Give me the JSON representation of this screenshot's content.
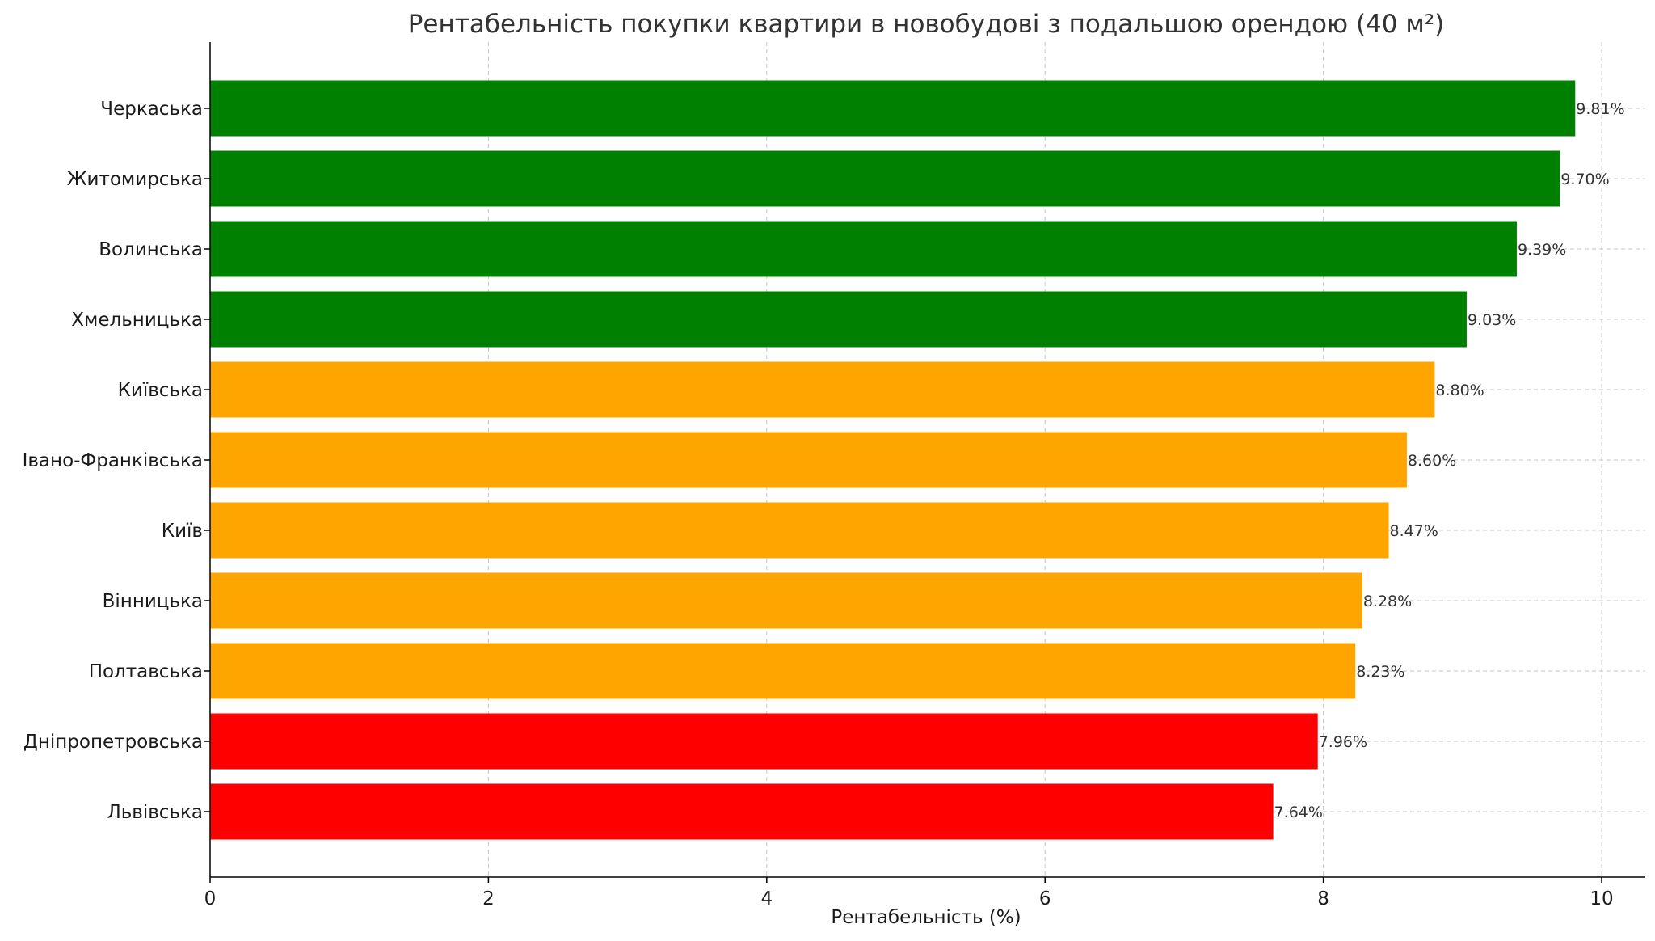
{
  "chart_data": {
    "type": "bar",
    "orientation": "horizontal",
    "title": "Рентабельність покупки квартири в новобудові з подальшою орендою (40 м²)",
    "xlabel": "Рентабельність (%)",
    "ylabel": "",
    "xlim": [
      0,
      10.3
    ],
    "xticks": [
      "0",
      "2",
      "4",
      "6",
      "8",
      "10"
    ],
    "grid": true,
    "categories": [
      "Черкаська",
      "Житомирська",
      "Волинська",
      "Хмельницька",
      "Київська",
      "Івано-Франківська",
      "Київ",
      "Вінницька",
      "Полтавська",
      "Дніпропетровська",
      "Львівська"
    ],
    "values": [
      9.81,
      9.7,
      9.39,
      9.03,
      8.8,
      8.6,
      8.47,
      8.28,
      8.23,
      7.96,
      7.64
    ],
    "data_labels": [
      "9.81%",
      "9.70%",
      "9.39%",
      "9.03%",
      "8.80%",
      "8.60%",
      "8.47%",
      "8.28%",
      "8.23%",
      "7.96%",
      "7.64%"
    ],
    "colors": [
      "#008000",
      "#008000",
      "#008000",
      "#008000",
      "#FFA500",
      "#FFA500",
      "#FFA500",
      "#FFA500",
      "#FFA500",
      "#FF0000",
      "#FF0000"
    ]
  }
}
